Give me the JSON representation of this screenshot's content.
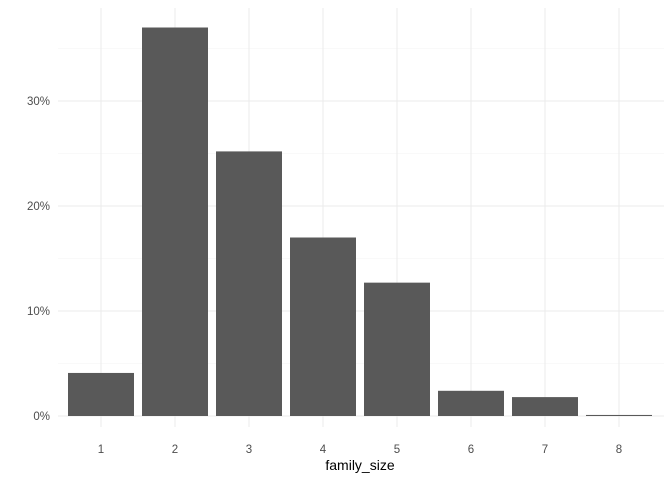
{
  "chart_data": {
    "type": "bar",
    "title": "",
    "xlabel": "family_size",
    "ylabel": "",
    "categories": [
      "1",
      "2",
      "3",
      "4",
      "5",
      "6",
      "7",
      "8"
    ],
    "values": [
      0.041,
      0.37,
      0.252,
      0.17,
      0.127,
      0.024,
      0.018,
      0.001
    ],
    "ylim": [
      0,
      0.39
    ],
    "yticks": [
      0,
      0.1,
      0.2,
      0.3
    ],
    "ytick_labels": [
      "0%",
      "10%",
      "20%",
      "30%"
    ],
    "grid": true,
    "legend": "none",
    "bar_color": "#595959"
  }
}
